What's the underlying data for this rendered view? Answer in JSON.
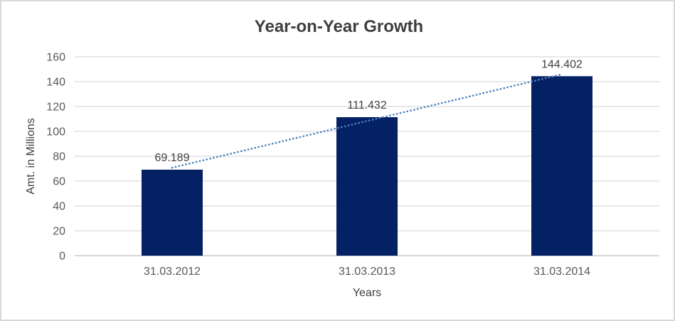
{
  "window": {
    "background": "#ffffff",
    "border_color": "#d9d9d9"
  },
  "chart_data": {
    "type": "bar",
    "title": "Year-on-Year Growth",
    "categories": [
      "31.03.2012",
      "31.03.2013",
      "31.03.2014"
    ],
    "values": [
      69.189,
      111.432,
      144.402
    ],
    "data_labels": [
      "69.189",
      "111.432",
      "144.402"
    ],
    "xlabel": "Years",
    "ylabel": "Amt. in Millions",
    "ylim": [
      0,
      160
    ],
    "yticks": [
      0,
      20,
      40,
      60,
      80,
      100,
      120,
      140,
      160
    ],
    "grid": true,
    "legend_position": "none",
    "bar_color": "#032163",
    "trendline": {
      "type": "linear",
      "style": "dotted",
      "color": "#4f81bd"
    },
    "colors": {
      "title": "#3f3f3f",
      "tick_labels": "#595959",
      "data_labels": "#404040",
      "gridline": "#d9d9d9",
      "axis_line": "#bfbfbf"
    }
  }
}
